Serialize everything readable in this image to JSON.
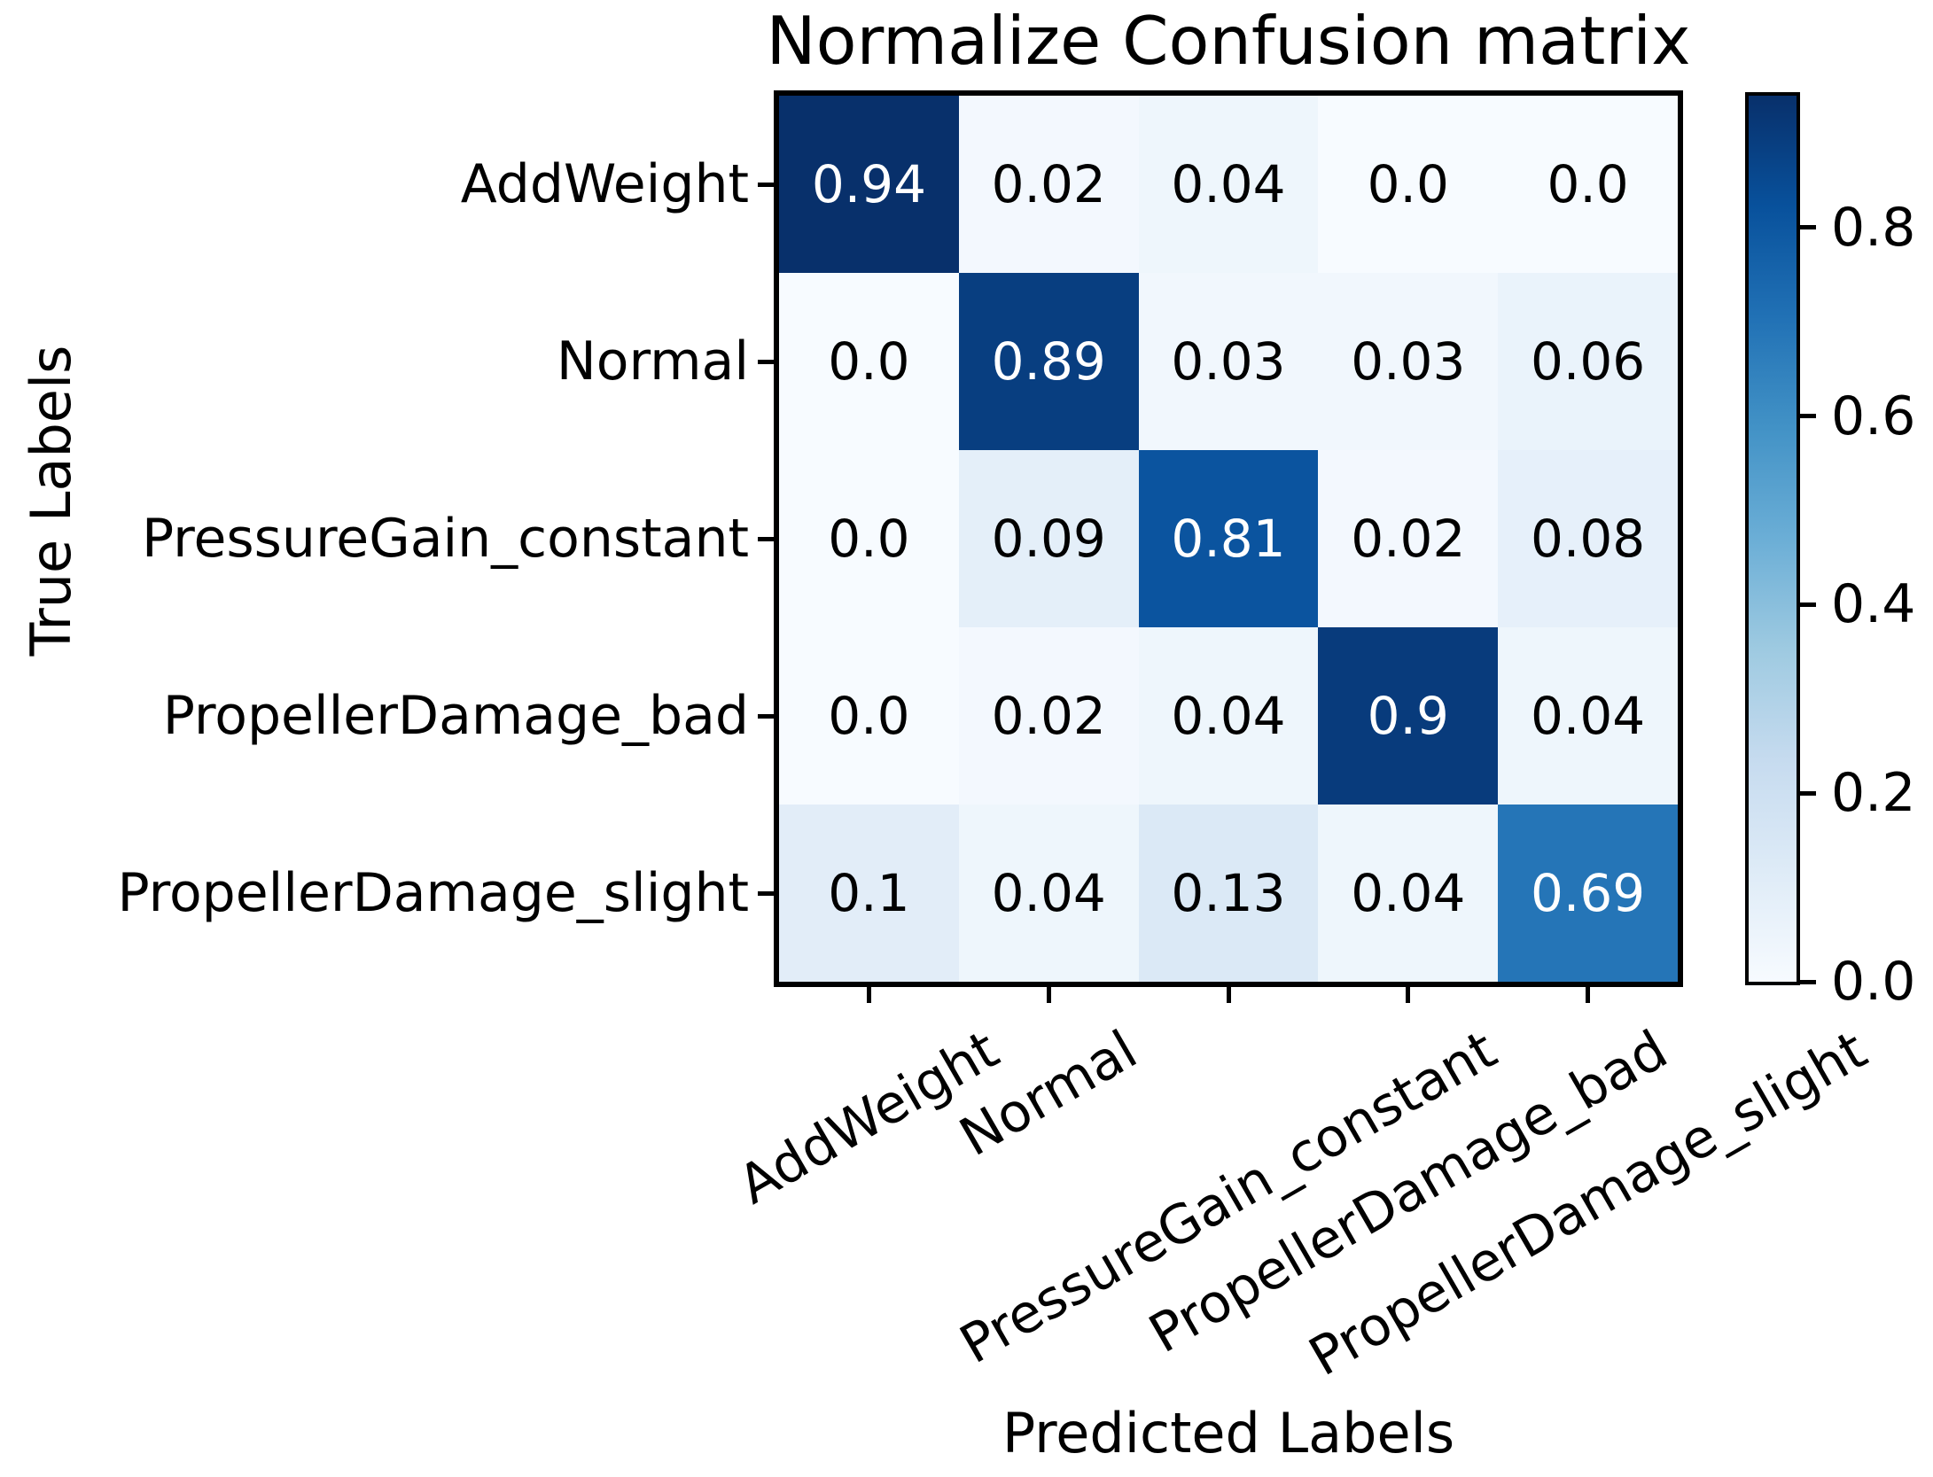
{
  "title": "Normalize Confusion matrix",
  "axes": {
    "x_label": "Predicted Labels",
    "y_label": "True Labels"
  },
  "chart_data": {
    "type": "heatmap",
    "title": "Normalize Confusion matrix",
    "xlabel": "Predicted Labels",
    "ylabel": "True Labels",
    "categories": [
      "AddWeight",
      "Normal",
      "PressureGain_constant",
      "PropellerDamage_bad",
      "PropellerDamage_slight"
    ],
    "matrix": [
      [
        "0.94",
        "0.02",
        "0.04",
        "0.0",
        "0.0"
      ],
      [
        "0.0",
        "0.89",
        "0.03",
        "0.03",
        "0.06"
      ],
      [
        "0.0",
        "0.09",
        "0.81",
        "0.02",
        "0.08"
      ],
      [
        "0.0",
        "0.02",
        "0.04",
        "0.9",
        "0.04"
      ],
      [
        "0.1",
        "0.04",
        "0.13",
        "0.04",
        "0.69"
      ]
    ],
    "vmin": 0,
    "vmax": 0.94,
    "colormap": "Blues",
    "colormap_stops": [
      "#f7fbff",
      "#deebf7",
      "#c6dbef",
      "#9ecae1",
      "#6baed6",
      "#4292c6",
      "#2171b5",
      "#08519c",
      "#08306b"
    ],
    "cell_text_color_high": "#ffffff",
    "cell_text_color_low": "#000000",
    "colorbar_ticks": [
      "0.8",
      "0.6",
      "0.4",
      "0.2",
      "0.0"
    ],
    "colorbar_position": "right",
    "x_tick_rotation_deg": 30,
    "grid": false
  }
}
